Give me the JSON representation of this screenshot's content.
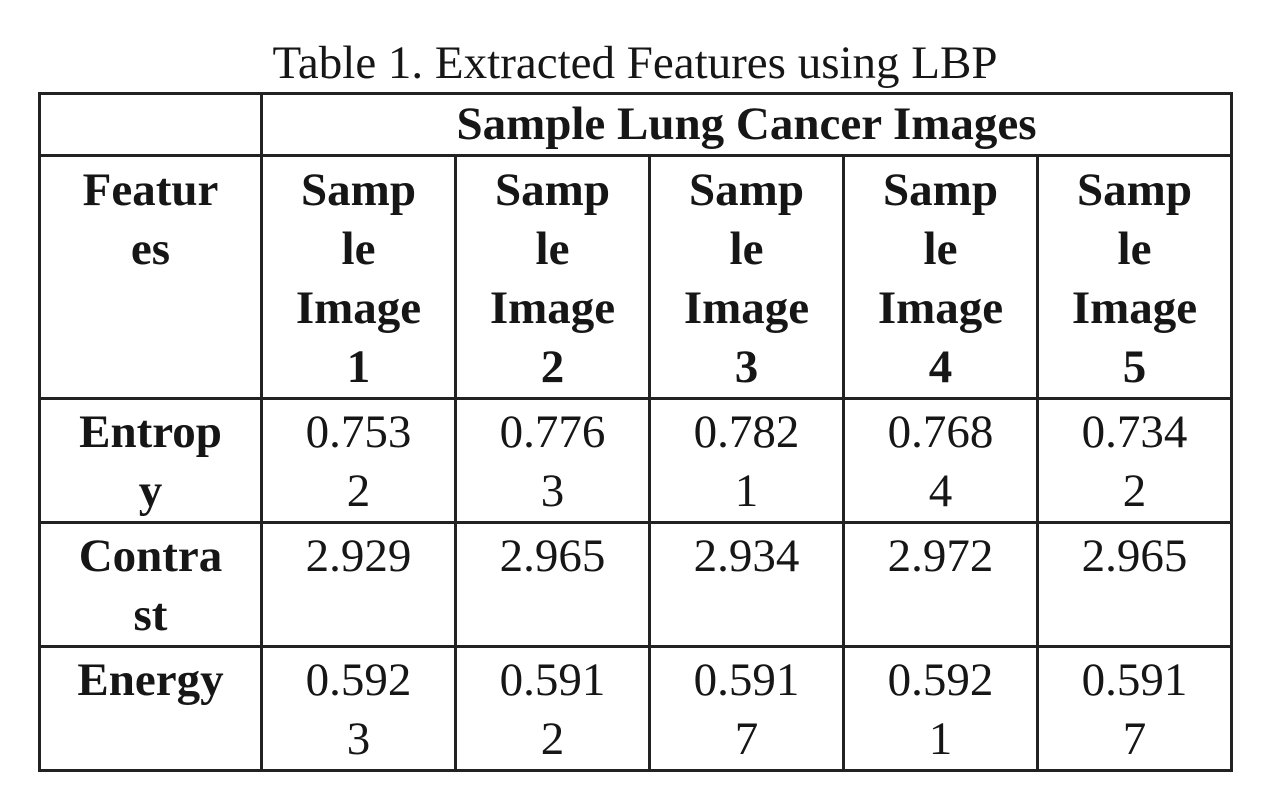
{
  "caption": "Table 1. Extracted Features using LBP",
  "table": {
    "group_header": "Sample Lung Cancer Images",
    "feature_header": "Featur\nes",
    "columns": [
      "Samp\nle\nImage\n1",
      "Samp\nle\nImage\n2",
      "Samp\nle\nImage\n3",
      "Samp\nle\nImage\n4",
      "Samp\nle\nImage\n5"
    ],
    "rows": [
      {
        "feature": "Entrop\ny",
        "values": [
          "0.753\n2",
          "0.776\n3",
          "0.782\n1",
          "0.768\n4",
          "0.734\n2"
        ]
      },
      {
        "feature": "Contra\nst",
        "values": [
          "2.929",
          "2.965",
          "2.934",
          "2.972",
          "2.965"
        ]
      },
      {
        "feature": "Energy",
        "values": [
          "0.592\n3",
          "0.591\n2",
          "0.591\n7",
          "0.592\n1",
          "0.591\n7"
        ]
      }
    ]
  }
}
